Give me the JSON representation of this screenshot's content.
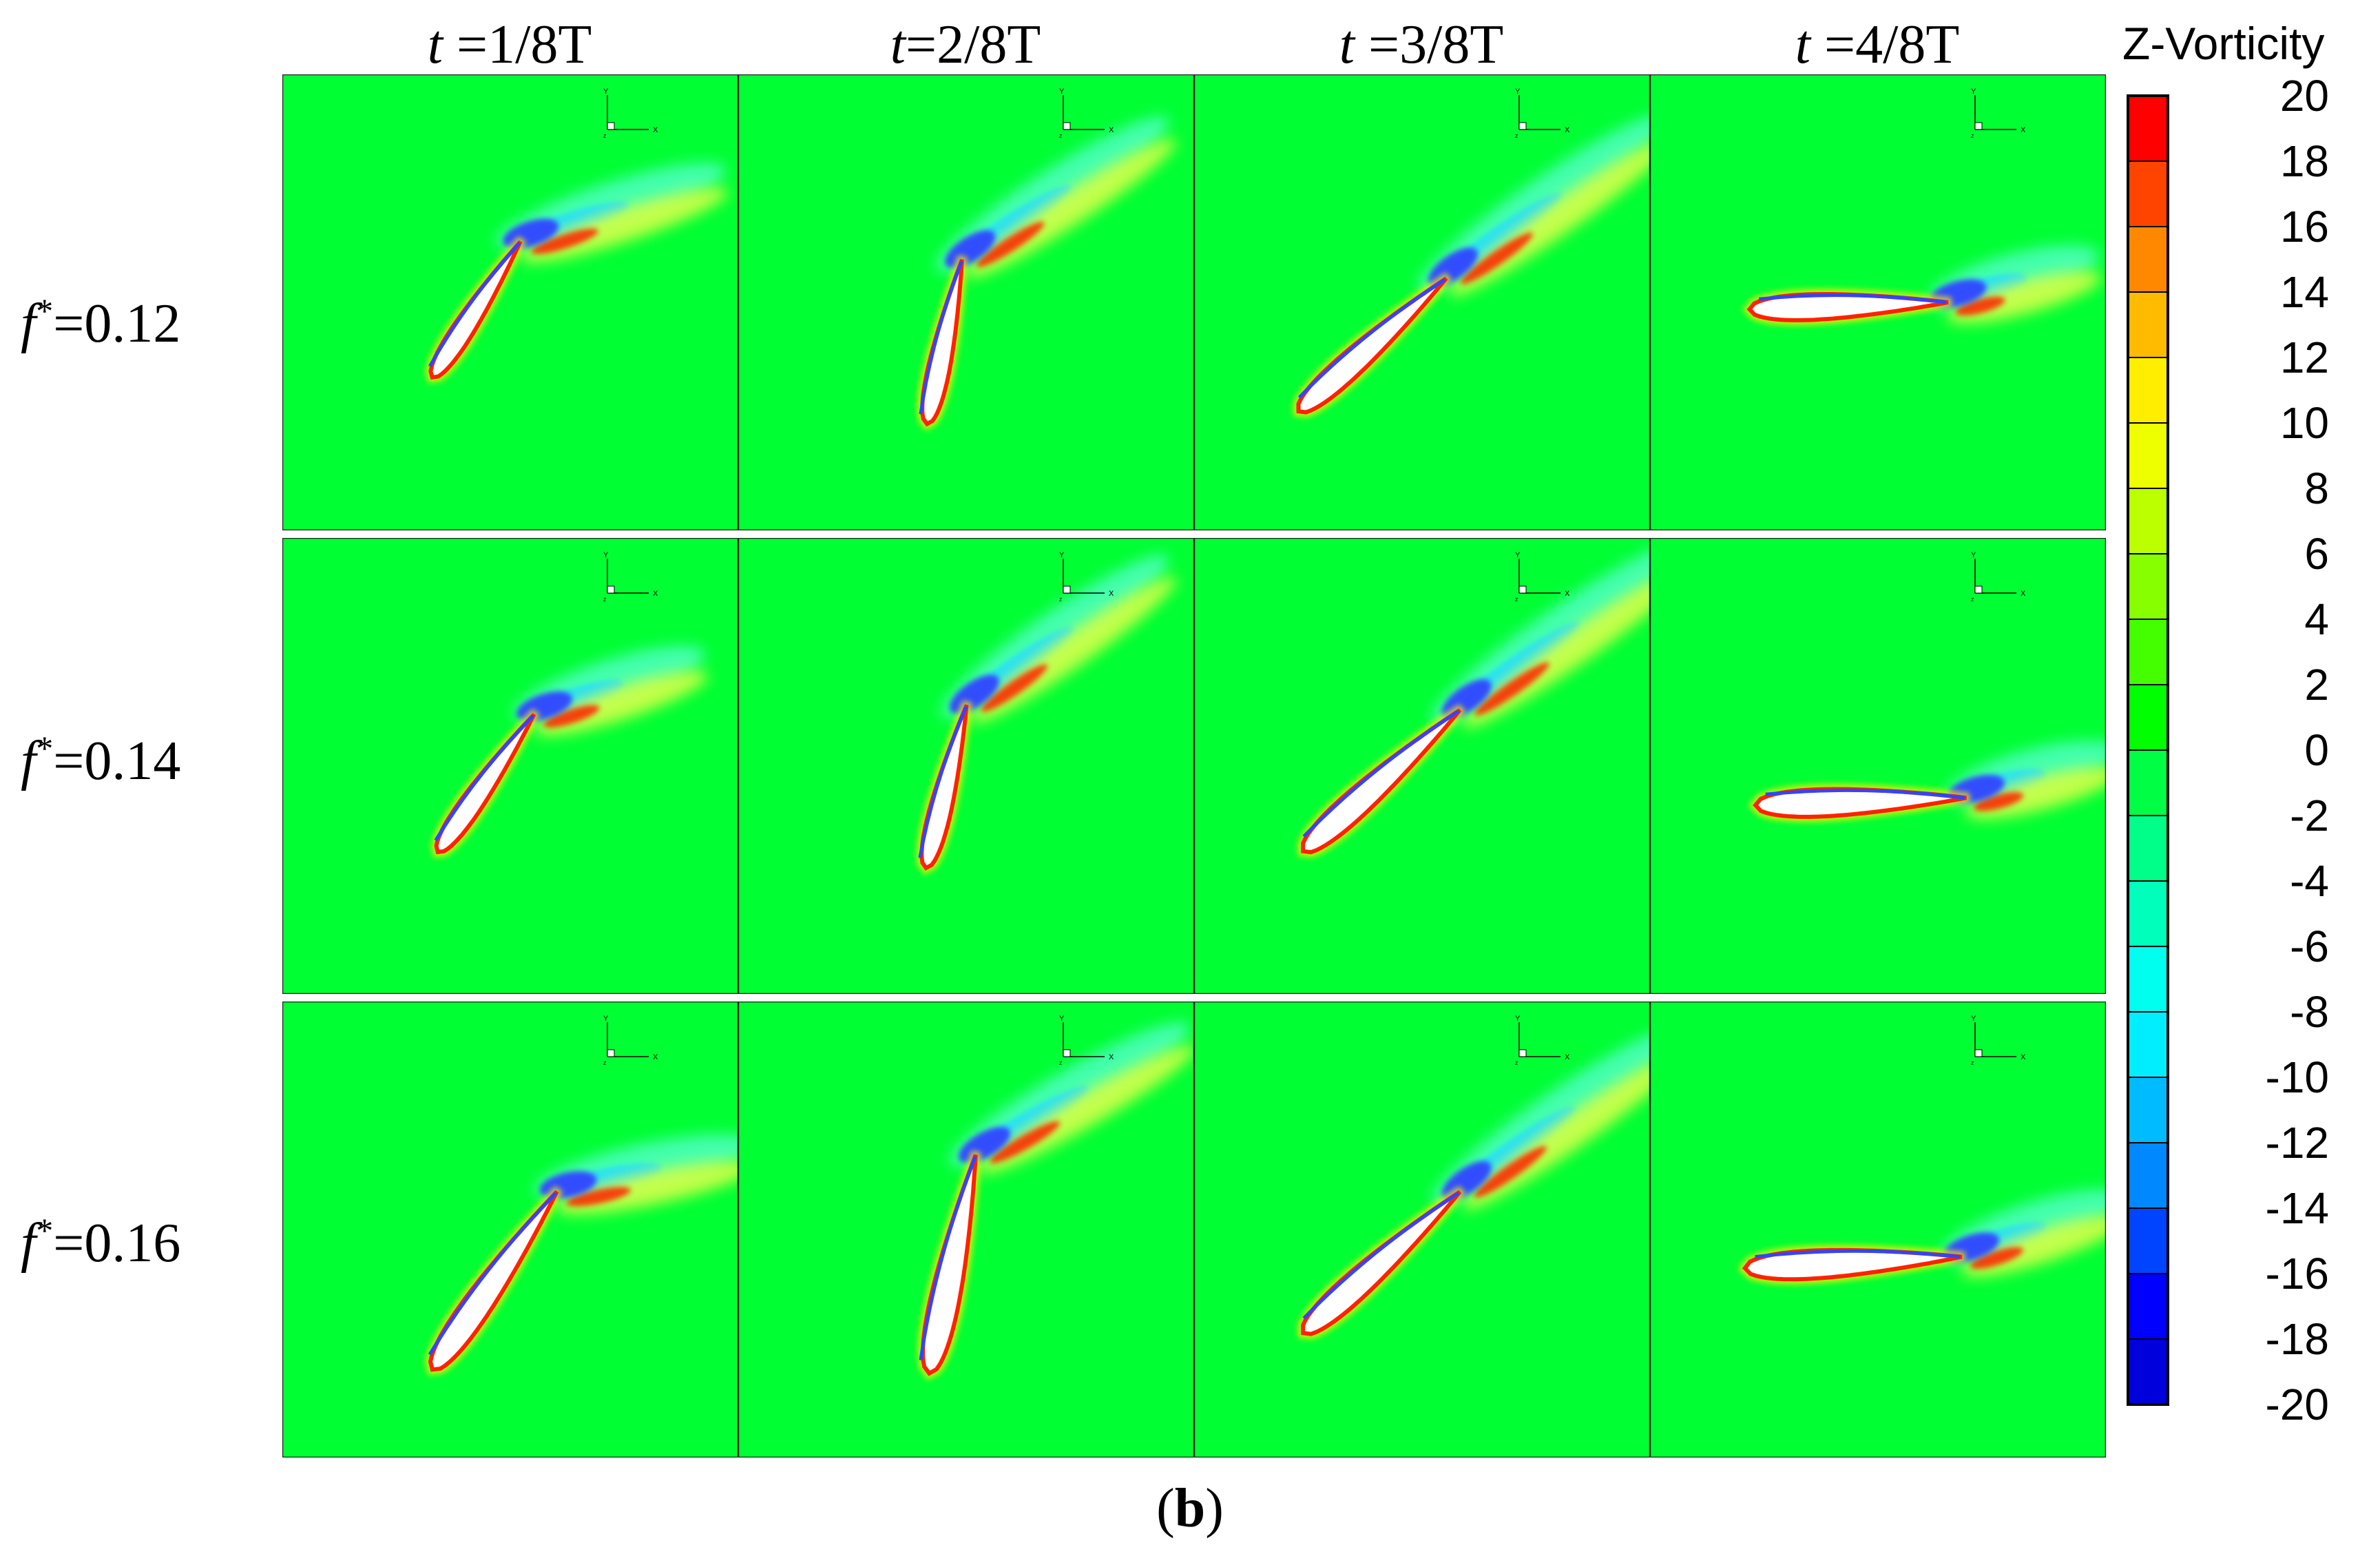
{
  "columns": [
    {
      "t": "t",
      "rest": " =1/8T"
    },
    {
      "t": "t",
      "rest": "=2/8T"
    },
    {
      "t": "t",
      "rest": " =3/8T"
    },
    {
      "t": "t",
      "rest": " =4/8T"
    }
  ],
  "rows": [
    {
      "f": "f",
      "star": "*",
      "rest": "=0.12"
    },
    {
      "f": "f",
      "star": "*",
      "rest": "=0.14"
    },
    {
      "f": "f",
      "star": "*",
      "rest": "=0.16"
    }
  ],
  "axis_triad": {
    "y_label": "Y",
    "x_label": "X",
    "origin_label": "Z"
  },
  "legend": {
    "title": "Z-Vorticity",
    "ticks": [
      "20",
      "18",
      "16",
      "14",
      "12",
      "10",
      "8",
      "6",
      "4",
      "2",
      "0",
      "-2",
      "-4",
      "-6",
      "-8",
      "-10",
      "-12",
      "-14",
      "-16",
      "-18",
      "-20"
    ],
    "colors": [
      "#ff0000",
      "#ff4400",
      "#ff8800",
      "#ffbb00",
      "#ffee00",
      "#eeff00",
      "#bbff00",
      "#88ff00",
      "#44ff00",
      "#00ff00",
      "#00ff44",
      "#00ff88",
      "#00ffbb",
      "#00ffee",
      "#00eeff",
      "#00bbff",
      "#0088ff",
      "#0044ff",
      "#0000ff",
      "#0000dd"
    ]
  },
  "caption": {
    "open": "(",
    "letter": "b",
    "close": ")"
  },
  "colors": {
    "background_field": "#00ff33",
    "positive": "#ff2200",
    "negative": "#3344ff",
    "airfoil": "#ffffff"
  },
  "panels": [
    {
      "row": 0,
      "col": 0,
      "pitch_deg": -57,
      "chord": 0.26,
      "tip": [
        0.52,
        0.37
      ],
      "wake_tilt_deg": -18,
      "wake_len": 0.48
    },
    {
      "row": 0,
      "col": 1,
      "pitch_deg": -78,
      "chord": 0.27,
      "tip": [
        0.49,
        0.41
      ],
      "wake_tilt_deg": -33,
      "wake_len": 0.55
    },
    {
      "row": 0,
      "col": 2,
      "pitch_deg": -42,
      "chord": 0.32,
      "tip": [
        0.55,
        0.45
      ],
      "wake_tilt_deg": -35,
      "wake_len": 0.6
    },
    {
      "row": 0,
      "col": 3,
      "pitch_deg": -2,
      "chord": 0.32,
      "tip": [
        0.65,
        0.5
      ],
      "wake_tilt_deg": -15,
      "wake_len": 0.35
    },
    {
      "row": 1,
      "col": 0,
      "pitch_deg": -55,
      "chord": 0.27,
      "tip": [
        0.55,
        0.39
      ],
      "wake_tilt_deg": -18,
      "wake_len": 0.4
    },
    {
      "row": 1,
      "col": 1,
      "pitch_deg": -76,
      "chord": 0.27,
      "tip": [
        0.5,
        0.37
      ],
      "wake_tilt_deg": -35,
      "wake_len": 0.55
    },
    {
      "row": 1,
      "col": 2,
      "pitch_deg": -42,
      "chord": 0.34,
      "tip": [
        0.58,
        0.38
      ],
      "wake_tilt_deg": -35,
      "wake_len": 0.62
    },
    {
      "row": 1,
      "col": 3,
      "pitch_deg": -2,
      "chord": 0.34,
      "tip": [
        0.69,
        0.57
      ],
      "wake_tilt_deg": -15,
      "wake_len": 0.35
    },
    {
      "row": 2,
      "col": 0,
      "pitch_deg": -55,
      "chord": 0.35,
      "tip": [
        0.6,
        0.42
      ],
      "wake_tilt_deg": -12,
      "wake_len": 0.45
    },
    {
      "row": 2,
      "col": 1,
      "pitch_deg": -78,
      "chord": 0.36,
      "tip": [
        0.52,
        0.34
      ],
      "wake_tilt_deg": -30,
      "wake_len": 0.55
    },
    {
      "row": 2,
      "col": 2,
      "pitch_deg": -42,
      "chord": 0.34,
      "tip": [
        0.58,
        0.42
      ],
      "wake_tilt_deg": -35,
      "wake_len": 0.6
    },
    {
      "row": 2,
      "col": 3,
      "pitch_deg": -3,
      "chord": 0.35,
      "tip": [
        0.68,
        0.56
      ],
      "wake_tilt_deg": -18,
      "wake_len": 0.38
    }
  ]
}
